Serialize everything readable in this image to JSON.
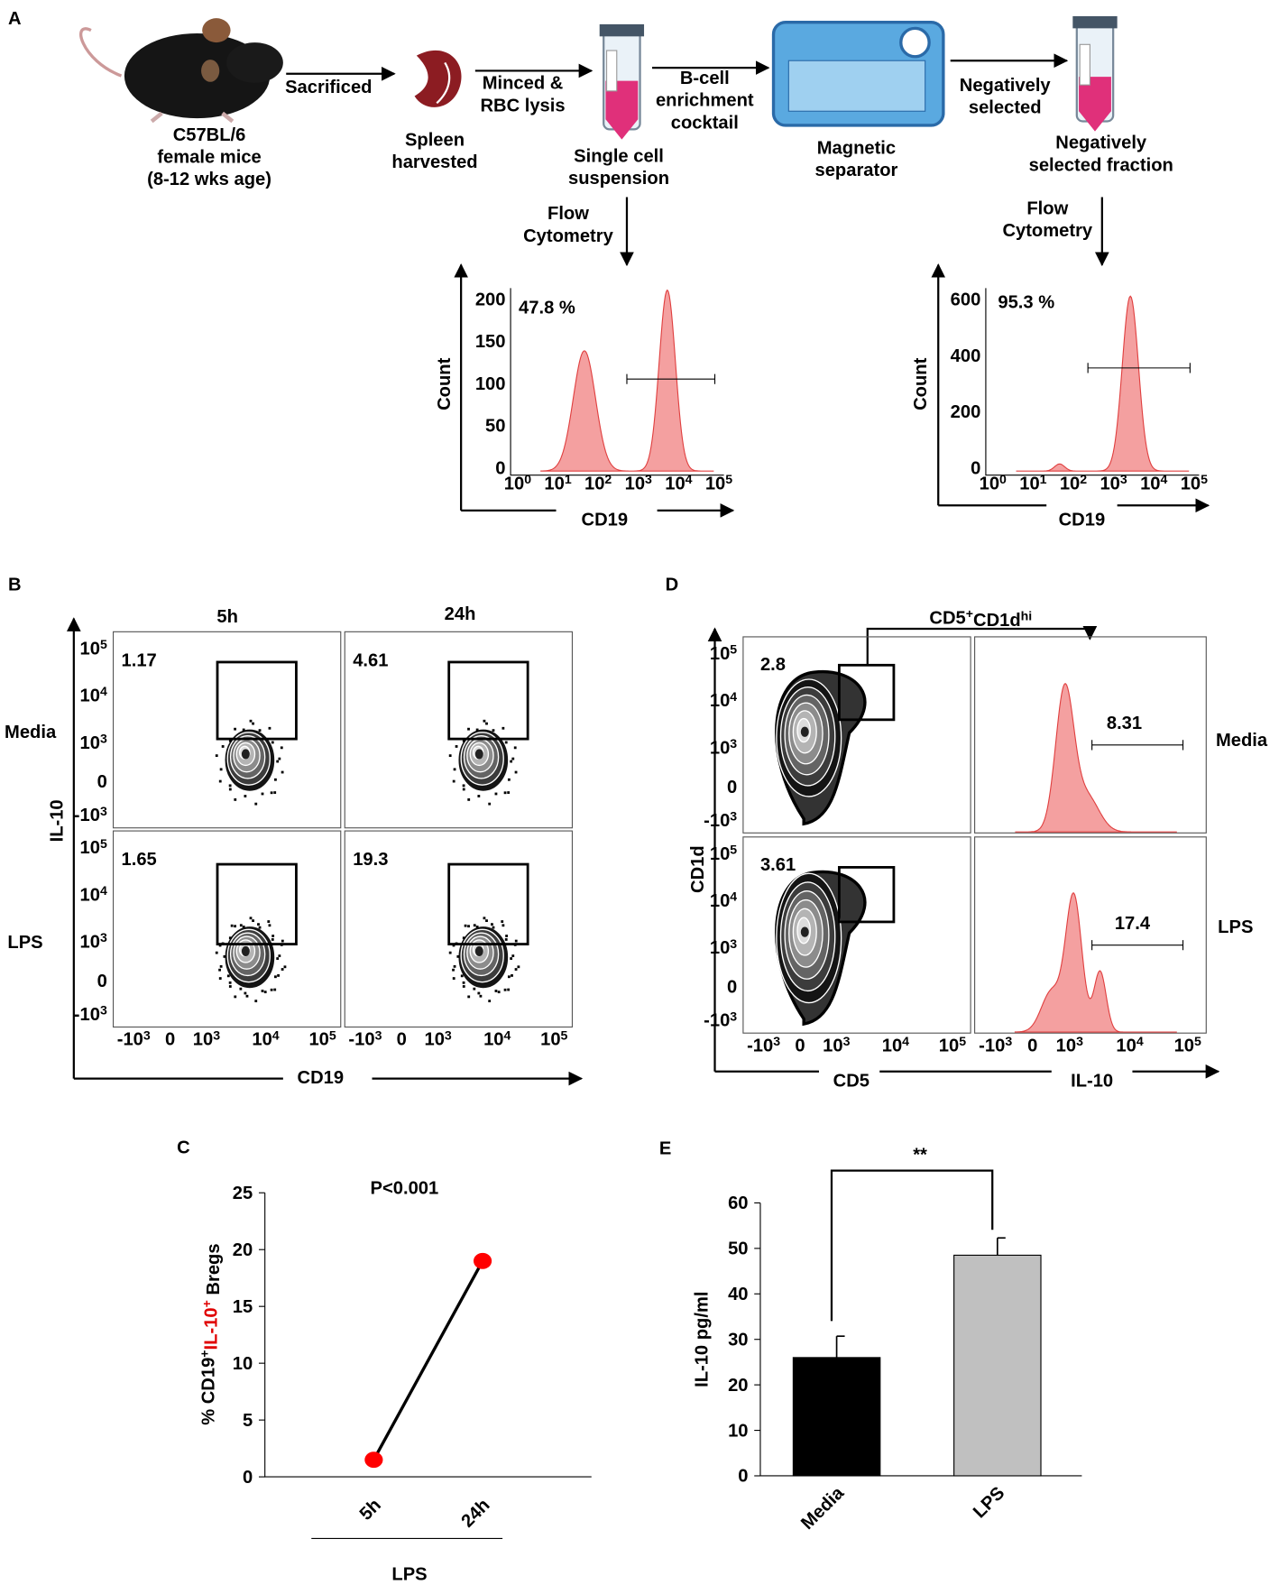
{
  "panels": {
    "A": {
      "label": "A",
      "mouse": [
        "C57BL/6",
        "female mice",
        "(8-12 wks age)"
      ],
      "step1": "Sacrificed",
      "spleen": [
        "Spleen",
        "harvested"
      ],
      "step2": [
        "Minced &",
        "RBC lysis"
      ],
      "suspension": [
        "Single cell",
        "suspension"
      ],
      "step3": [
        "B-cell",
        "enrichment",
        "cocktail"
      ],
      "separator": [
        "Magnetic",
        "separator"
      ],
      "step4": [
        "Negatively",
        "selected"
      ],
      "fraction": [
        "Negatively",
        "selected fraction"
      ],
      "histograms": [
        {
          "method": [
            "Flow",
            "Cytometry"
          ],
          "percent": "47.8 %",
          "ylabel": "Count",
          "xlabel": "CD19",
          "yticks": [
            0,
            50,
            100,
            150,
            200
          ],
          "xticks": [
            [
              "10",
              "0"
            ],
            [
              "10",
              "1"
            ],
            [
              "10",
              "2"
            ],
            [
              "10",
              "3"
            ],
            [
              "10",
              "4"
            ],
            [
              "10",
              "5"
            ]
          ]
        },
        {
          "method": [
            "Flow",
            "Cytometry"
          ],
          "percent": "95.3 %",
          "ylabel": "Count",
          "xlabel": "CD19",
          "yticks": [
            0,
            200,
            400,
            600
          ],
          "xticks": [
            [
              "10",
              "0"
            ],
            [
              "10",
              "1"
            ],
            [
              "10",
              "2"
            ],
            [
              "10",
              "3"
            ],
            [
              "10",
              "4"
            ],
            [
              "10",
              "5"
            ]
          ]
        }
      ]
    },
    "B": {
      "label": "B",
      "columns": [
        "5h",
        "24h"
      ],
      "rows": [
        "Media",
        "LPS"
      ],
      "ylabel": "IL-10",
      "xlabel": "CD19",
      "percents": [
        [
          1.17,
          4.61
        ],
        [
          1.65,
          19.3
        ]
      ],
      "xticks": [
        [
          "-10",
          "3"
        ],
        [
          "0"
        ],
        [
          "10",
          "3"
        ],
        [
          "10",
          "4"
        ],
        [
          "10",
          "5"
        ]
      ],
      "yticks": [
        [
          "10",
          "5"
        ],
        [
          "10",
          "4"
        ],
        [
          "10",
          "3"
        ],
        [
          "0"
        ],
        [
          "-10",
          "3"
        ]
      ]
    },
    "D": {
      "label": "D",
      "gate": [
        "CD5",
        "+",
        "CD1d",
        "hi"
      ],
      "rows": [
        "Media",
        "LPS"
      ],
      "ylabel": "CD1d",
      "xlabel_left": "CD5",
      "xlabel_right": "IL-10",
      "gate_percents": [
        2.8,
        3.61
      ],
      "il10_percents": [
        8.31,
        17.4
      ],
      "xticks": [
        [
          "-10",
          "3"
        ],
        [
          "0"
        ],
        [
          "10",
          "3"
        ],
        [
          "10",
          "4"
        ],
        [
          "10",
          "5"
        ]
      ],
      "yticks": [
        [
          "10",
          "5"
        ],
        [
          "10",
          "4"
        ],
        [
          "10",
          "3"
        ],
        [
          "0"
        ],
        [
          "-10",
          "3"
        ]
      ]
    }
  },
  "chart_data": [
    {
      "type": "line",
      "panel_label": "C",
      "title": "P<0.001",
      "ylabel": {
        "parts": [
          "% CD19",
          "+",
          "IL-10",
          "+",
          " Bregs"
        ],
        "colors": [
          "#000000",
          "#000000",
          "#e00000",
          "#e00000",
          "#000000"
        ]
      },
      "categories": [
        "5h",
        "24h"
      ],
      "group_label": "LPS",
      "values": [
        1.5,
        19
      ],
      "line_color": "#000000",
      "marker_color": "#ff0000",
      "ylim": [
        0,
        25
      ],
      "yticks": [
        0,
        5,
        10,
        15,
        20,
        25
      ]
    },
    {
      "type": "bar",
      "panel_label": "E",
      "annotation": "**",
      "ylabel": "IL-10 pg/ml",
      "categories": [
        "Media",
        "LPS"
      ],
      "category_colors": [
        "#000000",
        "#e00000"
      ],
      "values": [
        26,
        48.5
      ],
      "errors": [
        4.7,
        3.8
      ],
      "colors": [
        "#000000",
        "#c0c0c0"
      ],
      "ylim": [
        0,
        60
      ],
      "yticks": [
        0,
        10,
        20,
        30,
        40,
        50,
        60
      ]
    }
  ]
}
